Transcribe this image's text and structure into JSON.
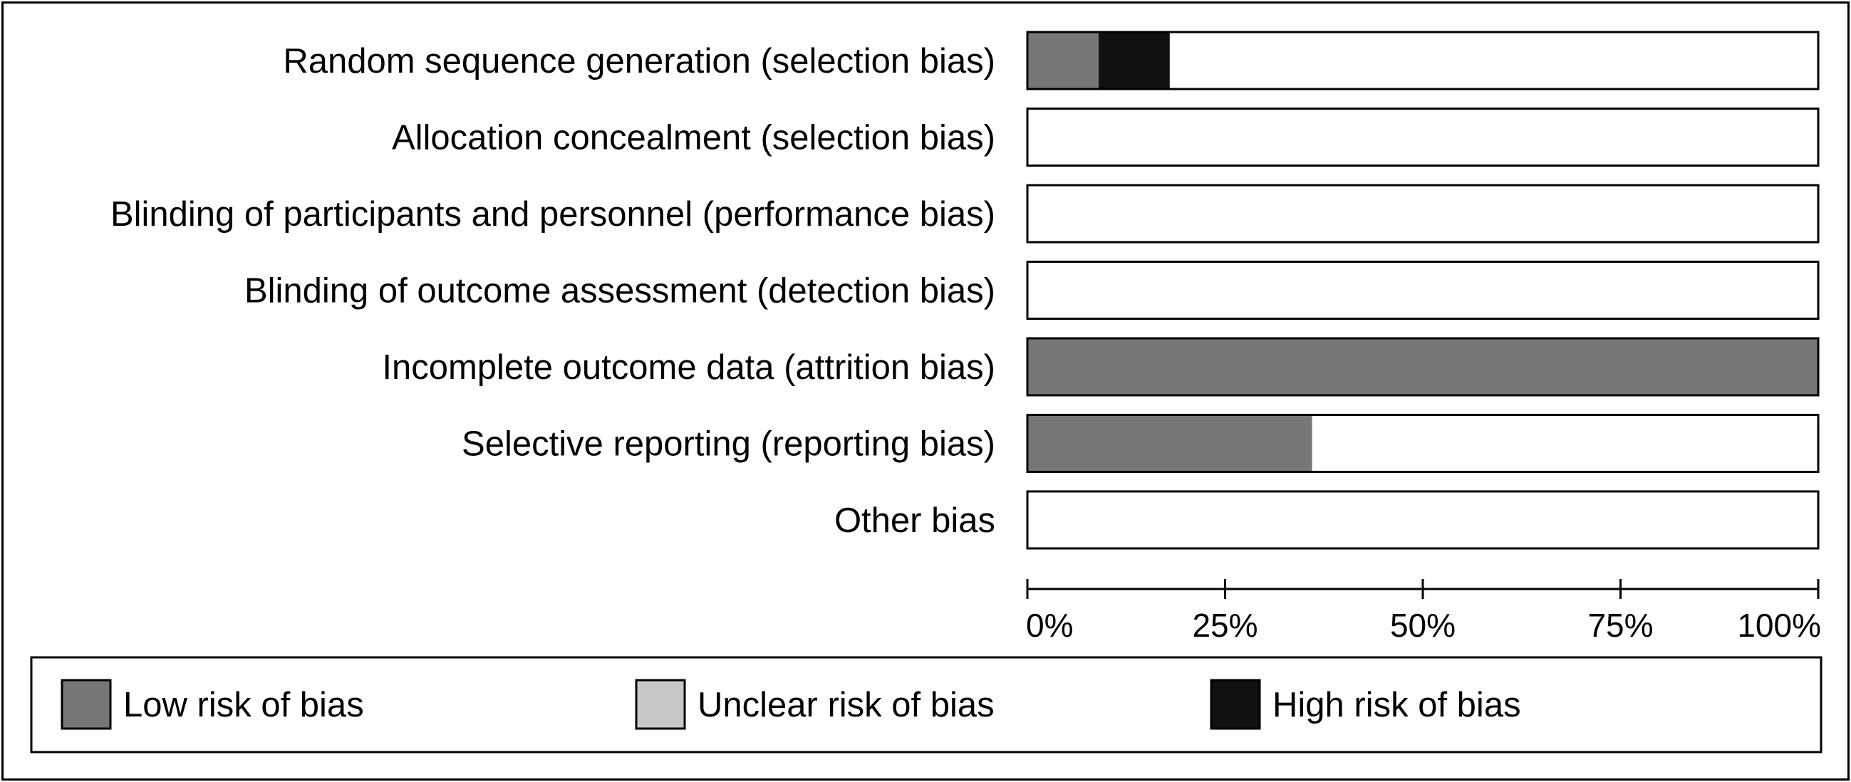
{
  "chart_data": {
    "type": "bar",
    "orientation": "horizontal",
    "stacked": true,
    "categories": [
      "Random sequence generation (selection bias)",
      "Allocation concealment (selection bias)",
      "Blinding of participants and personnel (performance bias)",
      "Blinding of outcome assessment (detection bias)",
      "Incomplete outcome data (attrition bias)",
      "Selective reporting (reporting bias)",
      "Other bias"
    ],
    "series": [
      {
        "name": "Low risk of bias",
        "color": "#777777",
        "values": [
          9,
          0,
          0,
          0,
          100,
          36,
          0
        ]
      },
      {
        "name": "Unclear risk of bias",
        "color": "#c8c8c8",
        "values": [
          0,
          0,
          0,
          0,
          0,
          0,
          0
        ]
      },
      {
        "name": "High risk of bias",
        "color": "#111111",
        "values": [
          9,
          0,
          0,
          0,
          0,
          0,
          0
        ]
      }
    ],
    "x_ticks": [
      "0%",
      "25%",
      "50%",
      "75%",
      "100%"
    ],
    "xlim": [
      0,
      100
    ],
    "legend": "bottom",
    "grid": false
  }
}
